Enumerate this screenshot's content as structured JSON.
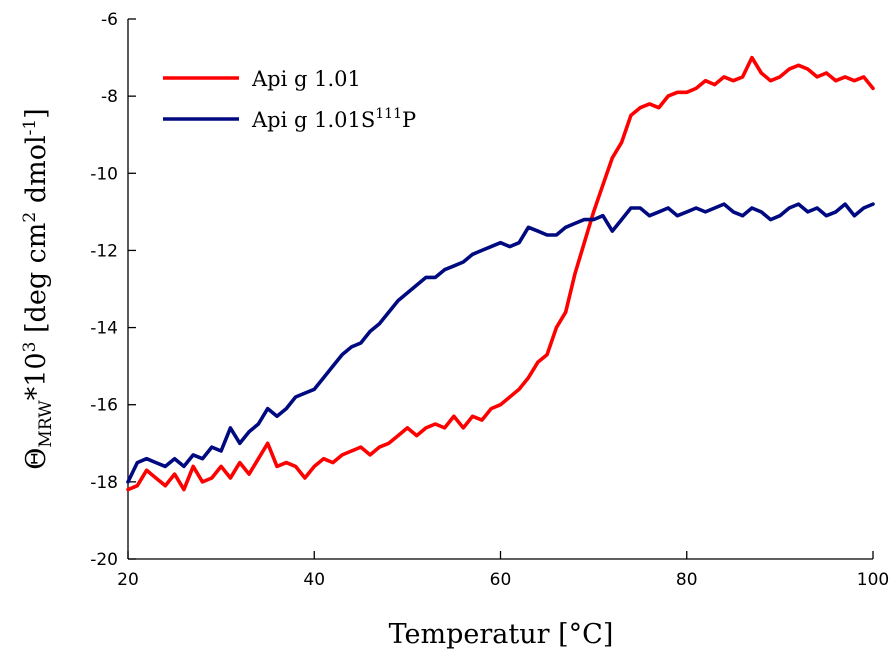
{
  "chart_data": {
    "type": "line",
    "xlabel": "Temperatur [°C]",
    "ylabel": {
      "prefix": "Θ",
      "sub": "MRW",
      "mid": "*10",
      "sup1": "3",
      "mid2": " [deg cm",
      "sup2": "2",
      "mid3": " dmol",
      "sup3": "-1",
      "suffix": "]"
    },
    "xlim": [
      20,
      100
    ],
    "ylim": [
      -20,
      -6
    ],
    "xticks": [
      20,
      40,
      60,
      80,
      100
    ],
    "yticks": [
      -20,
      -18,
      -16,
      -14,
      -12,
      -10,
      -8,
      -6
    ],
    "grid": false,
    "legend_position": "top-left",
    "series": [
      {
        "name": "Api g 1.01",
        "name_sup": "",
        "name_suffix": "",
        "color": "#ff0000",
        "x": [
          20,
          21,
          22,
          23,
          24,
          25,
          26,
          27,
          28,
          29,
          30,
          31,
          32,
          33,
          34,
          35,
          36,
          37,
          38,
          39,
          40,
          41,
          42,
          43,
          44,
          45,
          46,
          47,
          48,
          49,
          50,
          51,
          52,
          53,
          54,
          55,
          56,
          57,
          58,
          59,
          60,
          61,
          62,
          63,
          64,
          65,
          66,
          67,
          68,
          69,
          70,
          71,
          72,
          73,
          74,
          75,
          76,
          77,
          78,
          79,
          80,
          81,
          82,
          83,
          84,
          85,
          86,
          87,
          88,
          89,
          90,
          91,
          92,
          93,
          94,
          95,
          96,
          97,
          98,
          99,
          100
        ],
        "y": [
          -18.2,
          -18.1,
          -17.7,
          -17.9,
          -18.1,
          -17.8,
          -18.2,
          -17.6,
          -18.0,
          -17.9,
          -17.6,
          -17.9,
          -17.5,
          -17.8,
          -17.4,
          -17.0,
          -17.6,
          -17.5,
          -17.6,
          -17.9,
          -17.6,
          -17.4,
          -17.5,
          -17.3,
          -17.2,
          -17.1,
          -17.3,
          -17.1,
          -17.0,
          -16.8,
          -16.6,
          -16.8,
          -16.6,
          -16.5,
          -16.6,
          -16.3,
          -16.6,
          -16.3,
          -16.4,
          -16.1,
          -16.0,
          -15.8,
          -15.6,
          -15.3,
          -14.9,
          -14.7,
          -14.0,
          -13.6,
          -12.6,
          -11.8,
          -11.0,
          -10.3,
          -9.6,
          -9.2,
          -8.5,
          -8.3,
          -8.2,
          -8.3,
          -8.0,
          -7.9,
          -7.9,
          -7.8,
          -7.6,
          -7.7,
          -7.5,
          -7.6,
          -7.5,
          -7.0,
          -7.4,
          -7.6,
          -7.5,
          -7.3,
          -7.2,
          -7.3,
          -7.5,
          -7.4,
          -7.6,
          -7.5,
          -7.6,
          -7.5,
          -7.8
        ]
      },
      {
        "name": "Api g 1.01S",
        "name_sup": "111",
        "name_suffix": "P",
        "color": "#000a80",
        "x": [
          20,
          21,
          22,
          23,
          24,
          25,
          26,
          27,
          28,
          29,
          30,
          31,
          32,
          33,
          34,
          35,
          36,
          37,
          38,
          39,
          40,
          41,
          42,
          43,
          44,
          45,
          46,
          47,
          48,
          49,
          50,
          51,
          52,
          53,
          54,
          55,
          56,
          57,
          58,
          59,
          60,
          61,
          62,
          63,
          64,
          65,
          66,
          67,
          68,
          69,
          70,
          71,
          72,
          73,
          74,
          75,
          76,
          77,
          78,
          79,
          80,
          81,
          82,
          83,
          84,
          85,
          86,
          87,
          88,
          89,
          90,
          91,
          92,
          93,
          94,
          95,
          96,
          97,
          98,
          99,
          100
        ],
        "y": [
          -18.0,
          -17.5,
          -17.4,
          -17.5,
          -17.6,
          -17.4,
          -17.6,
          -17.3,
          -17.4,
          -17.1,
          -17.2,
          -16.6,
          -17.0,
          -16.7,
          -16.5,
          -16.1,
          -16.3,
          -16.1,
          -15.8,
          -15.7,
          -15.6,
          -15.3,
          -15.0,
          -14.7,
          -14.5,
          -14.4,
          -14.1,
          -13.9,
          -13.6,
          -13.3,
          -13.1,
          -12.9,
          -12.7,
          -12.7,
          -12.5,
          -12.4,
          -12.3,
          -12.1,
          -12.0,
          -11.9,
          -11.8,
          -11.9,
          -11.8,
          -11.4,
          -11.5,
          -11.6,
          -11.6,
          -11.4,
          -11.3,
          -11.2,
          -11.2,
          -11.1,
          -11.5,
          -11.2,
          -10.9,
          -10.9,
          -11.1,
          -11.0,
          -10.9,
          -11.1,
          -11.0,
          -10.9,
          -11.0,
          -10.9,
          -10.8,
          -11.0,
          -11.1,
          -10.9,
          -11.0,
          -11.2,
          -11.1,
          -10.9,
          -10.8,
          -11.0,
          -10.9,
          -11.1,
          -11.0,
          -10.8,
          -11.1,
          -10.9,
          -10.8
        ]
      }
    ]
  }
}
